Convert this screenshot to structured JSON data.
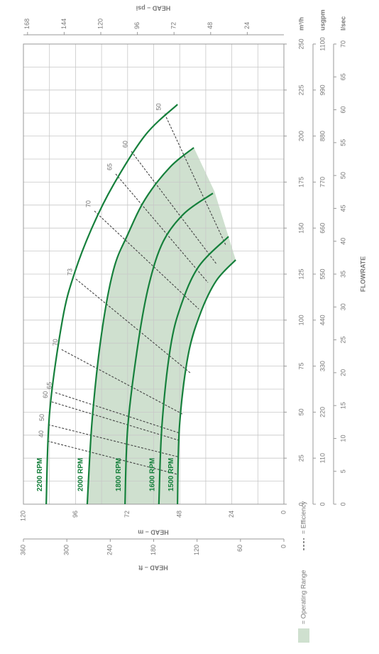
{
  "chart_data": {
    "type": "line",
    "x_label": "FLOWRATE",
    "y_label": "HEAD – m",
    "y2_label": "HEAD – psi",
    "y3_label": "HEAD – ft",
    "x_unit": "m³/h",
    "x2_unit": "usgpm",
    "x3_unit": "l/sec",
    "xlim": [
      0,
      250
    ],
    "xticks": [
      0,
      25,
      50,
      75,
      100,
      125,
      150,
      175,
      200,
      225,
      250
    ],
    "x_minor_ticks": [
      12.5,
      37.5,
      62.5,
      87.5,
      112.5,
      137.5,
      162.5,
      187.5,
      212.5,
      237.5
    ],
    "x2lim": [
      0,
      1100
    ],
    "x2ticks": [
      0,
      110,
      220,
      330,
      440,
      550,
      660,
      770,
      880,
      990,
      1100
    ],
    "x3lim": [
      0,
      70
    ],
    "x3ticks": [
      0,
      5,
      10,
      15,
      20,
      25,
      30,
      35,
      40,
      45,
      50,
      55,
      60,
      65,
      70
    ],
    "ylim": [
      0,
      120
    ],
    "yticks": [
      0,
      24,
      48,
      72,
      96,
      120
    ],
    "y_minor_ticks": [
      12,
      36,
      60,
      84,
      108
    ],
    "y2lim": [
      0,
      170.7
    ],
    "y2ticks": [
      24,
      48,
      72,
      96,
      120,
      144,
      168
    ],
    "y3lim": [
      0,
      360
    ],
    "y3ticks": [
      0,
      60,
      120,
      180,
      240,
      300,
      360
    ],
    "grid": true,
    "series": [
      {
        "name": "2200 RPM",
        "color": "#16803c",
        "x": [
          0,
          50.2,
          100.3,
          125.4,
          150.5,
          173.6,
          200.6,
          217.2
        ],
        "values": [
          109.5,
          107.9,
          102,
          96.5,
          88.3,
          78.5,
          63.8,
          49
        ]
      },
      {
        "name": "2000 RPM",
        "color": "#16803c",
        "x": [
          0,
          46.3,
          92.6,
          127.3,
          146.6,
          165.9,
          183.3,
          193.7
        ],
        "values": [
          90.6,
          88.3,
          84,
          78.5,
          71.9,
          63.8,
          52.3,
          41.5
        ]
      },
      {
        "name": "1800 RPM",
        "color": "#16803c",
        "x": [
          0,
          42.4,
          88.7,
          119.6,
          142.7,
          158.1,
          168.9
        ],
        "values": [
          73.2,
          71.9,
          67,
          62.1,
          55.6,
          45.8,
          32.7
        ]
      },
      {
        "name": "1600 RPM",
        "color": "#16803c",
        "x": [
          0,
          42.4,
          84.9,
          108,
          129.2,
          145.4
        ],
        "values": [
          57.6,
          56.2,
          52.3,
          47.4,
          39.2,
          25.5
        ]
      },
      {
        "name": "1500 RPM",
        "color": "#16803c",
        "x": [
          0,
          42.4,
          81,
          104.2,
          121.5,
          132.7
        ],
        "values": [
          49,
          48.1,
          44.1,
          38.3,
          31.1,
          22.2
        ]
      }
    ],
    "efficiency": [
      {
        "efficiency": 40,
        "x": [
          34.3,
          16.2
        ],
        "values": [
          109,
          49
        ]
      },
      {
        "efficiency": 50,
        "x": [
          43.2,
          25.8
        ],
        "values": [
          108.6,
          49
        ]
      },
      {
        "efficiency": 60,
        "x": [
          55.6,
          34.7
        ],
        "values": [
          107,
          48.4
        ]
      },
      {
        "efficiency": 65,
        "x": [
          60.6,
          38.6
        ],
        "values": [
          105.3,
          48
        ]
      },
      {
        "efficiency": 70,
        "x": [
          84,
          49
        ],
        "values": [
          102.4,
          46.8
        ]
      },
      {
        "efficiency": 73,
        "x": [
          122.3,
          71.4
        ],
        "values": [
          95.8,
          43.2
        ]
      },
      {
        "efficiency": 70,
        "x": [
          159.3,
          106
        ],
        "values": [
          87.3,
          39.2
        ]
      },
      {
        "efficiency": 65,
        "x": [
          179.4,
          120.4
        ],
        "values": [
          77.5,
          35
        ]
      },
      {
        "efficiency": 60,
        "x": [
          191.7,
          130.4
        ],
        "values": [
          70.3,
          31
        ]
      },
      {
        "efficiency": 50,
        "x": [
          212,
          140.8
        ],
        "values": [
          54.9,
          26.8
        ]
      }
    ],
    "efficiency_legend": "= Efficiency",
    "operating_range": {
      "label": "= Operating Range",
      "color": "#cfe0cf",
      "x": [
        0,
        46.3,
        92.6,
        127.3,
        146.6,
        165.9,
        183.3,
        193.7,
        170,
        132.7,
        121.5,
        104.2,
        81,
        42.4,
        0
      ],
      "values": [
        90.6,
        88.3,
        84,
        78.5,
        71.9,
        63.8,
        52.3,
        41.5,
        32,
        22.2,
        31.1,
        38.3,
        44.1,
        48.1,
        49
      ]
    }
  }
}
